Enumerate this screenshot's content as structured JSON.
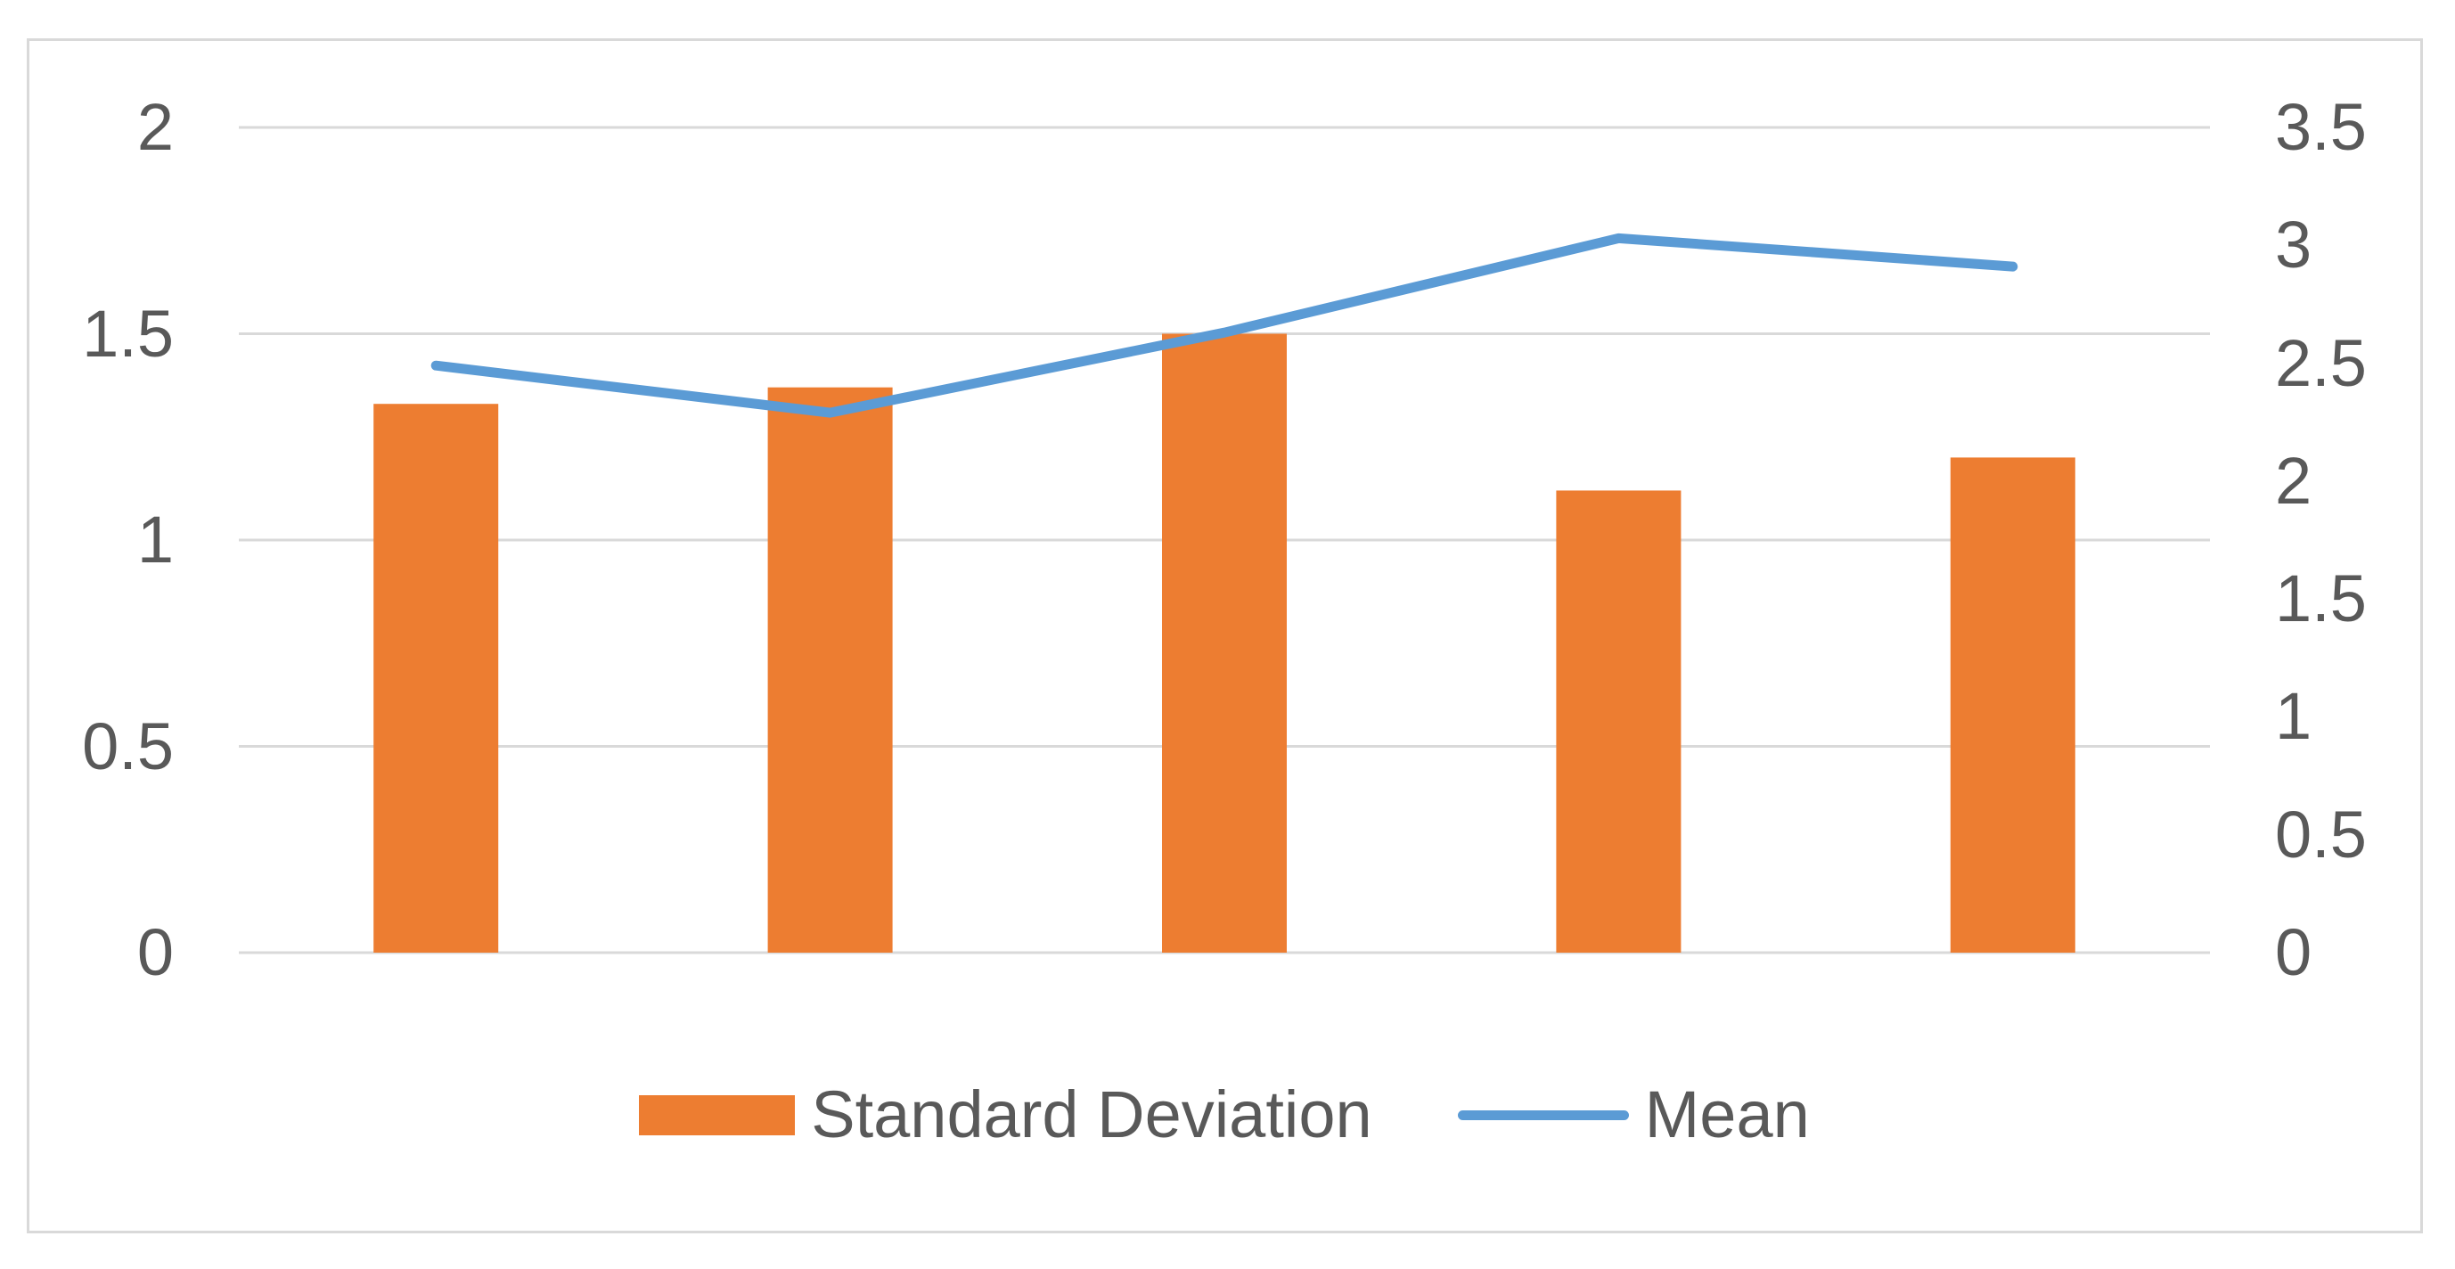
{
  "chart_data": {
    "type": "combo",
    "title": "",
    "categories": [
      "",
      "",
      "",
      "",
      ""
    ],
    "series": [
      {
        "name": "Standard Deviation",
        "chart_type": "bar",
        "axis": "left",
        "color": "#ED7D31",
        "values": [
          1.33,
          1.37,
          1.5,
          1.12,
          1.2
        ]
      },
      {
        "name": "Mean",
        "chart_type": "line",
        "axis": "right",
        "color": "#5B9BD5",
        "values": [
          2.49,
          2.29,
          2.63,
          3.03,
          2.91
        ]
      }
    ],
    "left_axis": {
      "min": 0,
      "max": 2,
      "tick_labels": [
        "2",
        "1.5",
        "1",
        "0.5",
        "0"
      ],
      "tick_values": [
        2,
        1.5,
        1,
        0.5,
        0
      ]
    },
    "right_axis": {
      "min": 0,
      "max": 3.5,
      "tick_labels": [
        "3.5",
        "3",
        "2.5",
        "2",
        "1.5",
        "1",
        "0.5",
        "0"
      ],
      "tick_values": [
        3.5,
        3,
        2.5,
        2,
        1.5,
        1,
        0.5,
        0
      ]
    },
    "legend": {
      "position": "bottom"
    },
    "grid": true,
    "colors": {
      "bar": "#ED7D31",
      "line": "#5B9BD5",
      "gridline": "#D9D9D9",
      "chart_border": "#D9D9D9",
      "axis_text": "#595959",
      "background": "#FFFFFF"
    }
  }
}
